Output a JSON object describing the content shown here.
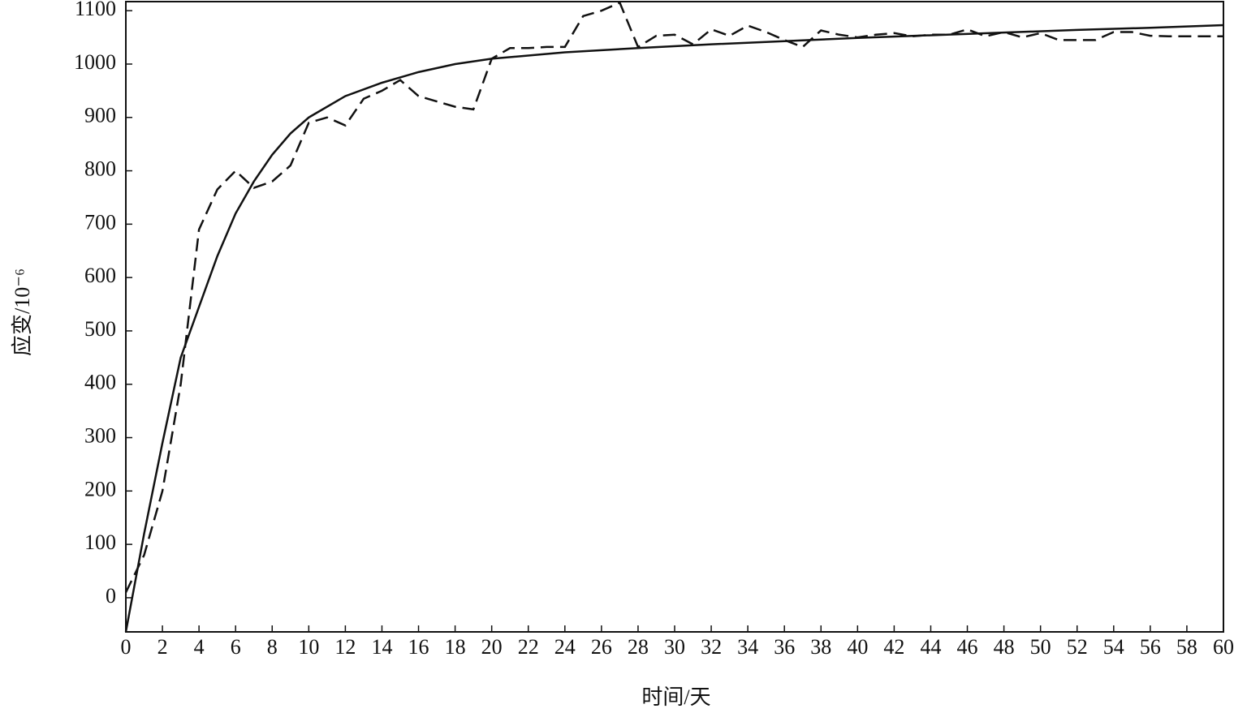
{
  "chart_data": {
    "type": "line",
    "x_label": "时间/天",
    "y_label": "应变/10⁻⁶",
    "xlim": [
      0,
      60
    ],
    "xticks": [
      0,
      2,
      4,
      6,
      8,
      10,
      12,
      14,
      16,
      18,
      20,
      22,
      24,
      26,
      28,
      30,
      32,
      34,
      36,
      38,
      40,
      42,
      44,
      46,
      48,
      50,
      52,
      54,
      56,
      58,
      60
    ],
    "ylim": [
      -64,
      1117
    ],
    "yticks": [
      0,
      100,
      200,
      300,
      400,
      500,
      600,
      700,
      800,
      900,
      1000,
      1100
    ],
    "series": [
      {
        "color": "#111111",
        "line_style": "solid",
        "x": [
          0,
          1,
          2,
          3,
          4,
          5,
          6,
          7,
          8,
          9,
          10,
          12,
          14,
          16,
          18,
          20,
          24,
          28,
          32,
          36,
          40,
          44,
          48,
          52,
          56,
          60
        ],
        "values": [
          -64,
          120,
          290,
          450,
          545,
          640,
          720,
          780,
          830,
          870,
          900,
          940,
          965,
          985,
          1000,
          1010,
          1022,
          1030,
          1037,
          1043,
          1049,
          1054,
          1059,
          1064,
          1068,
          1073
        ]
      },
      {
        "color": "#111111",
        "line_style": "dashed",
        "x": [
          0,
          1,
          2,
          3,
          4,
          5,
          6,
          7,
          8,
          9,
          10,
          11,
          12,
          13,
          14,
          15,
          16,
          17,
          18,
          19,
          20,
          21,
          22,
          23,
          24,
          25,
          26,
          27,
          28,
          29,
          30,
          31,
          32,
          33,
          34,
          35,
          36,
          37,
          38,
          39,
          40,
          41,
          42,
          43,
          44,
          45,
          46,
          47,
          48,
          49,
          50,
          51,
          52,
          53,
          54,
          55,
          56,
          57,
          58,
          59,
          60
        ],
        "values": [
          10,
          80,
          200,
          400,
          690,
          765,
          800,
          768,
          780,
          810,
          890,
          900,
          885,
          935,
          950,
          970,
          940,
          930,
          920,
          915,
          1010,
          1030,
          1030,
          1032,
          1032,
          1090,
          1100,
          1115,
          1032,
          1053,
          1055,
          1037,
          1065,
          1053,
          1072,
          1060,
          1045,
          1032,
          1063,
          1055,
          1050,
          1055,
          1058,
          1052,
          1055,
          1055,
          1065,
          1052,
          1060,
          1050,
          1058,
          1045,
          1045,
          1045,
          1060,
          1060,
          1053,
          1052,
          1052,
          1052,
          1052
        ]
      }
    ]
  }
}
